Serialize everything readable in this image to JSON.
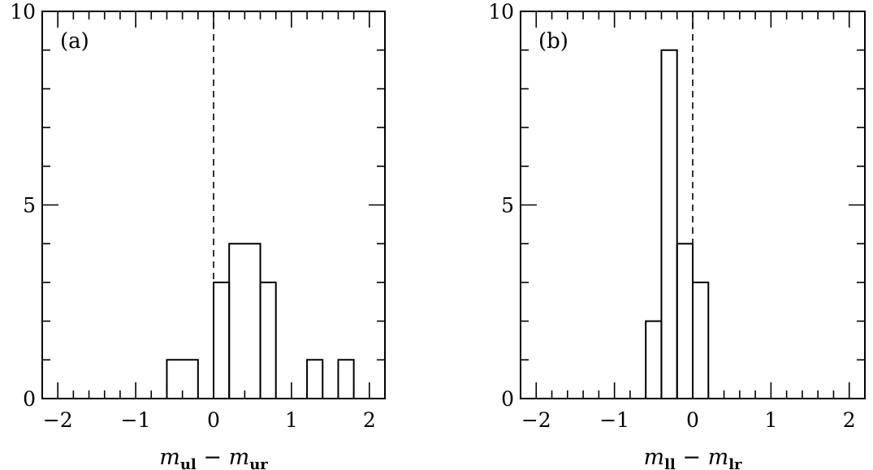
{
  "chart_data": [
    {
      "type": "bar",
      "panel_label": "(a)",
      "xlabel": {
        "left_var": "m",
        "left_sub": "ul",
        "operator": "−",
        "right_var": "m",
        "right_sub": "ur"
      },
      "xlim": [
        -2.2,
        2.2
      ],
      "ylim": [
        0,
        10
      ],
      "x_ticks": [
        -2,
        -1,
        0,
        1,
        2
      ],
      "x_tick_labels": [
        "−2",
        "−1",
        "0",
        "1",
        "2"
      ],
      "y_ticks": [
        0,
        5,
        10
      ],
      "y_tick_labels": [
        "0",
        "5",
        "10"
      ],
      "reference_line_x": 0,
      "bin_width": 0.2,
      "bins": [
        {
          "x0": -0.6,
          "x1": -0.2,
          "count": 1
        },
        {
          "x0": 0.0,
          "x1": 0.2,
          "count": 3
        },
        {
          "x0": 0.2,
          "x1": 0.6,
          "count": 4
        },
        {
          "x0": 0.6,
          "x1": 0.8,
          "count": 3
        },
        {
          "x0": 1.2,
          "x1": 1.4,
          "count": 1
        },
        {
          "x0": 1.6,
          "x1": 1.8,
          "count": 1
        }
      ]
    },
    {
      "type": "bar",
      "panel_label": "(b)",
      "xlabel": {
        "left_var": "m",
        "left_sub": "ll",
        "operator": "−",
        "right_var": "m",
        "right_sub": "lr"
      },
      "xlim": [
        -2.2,
        2.2
      ],
      "ylim": [
        0,
        10
      ],
      "x_ticks": [
        -2,
        -1,
        0,
        1,
        2
      ],
      "x_tick_labels": [
        "−2",
        "−1",
        "0",
        "1",
        "2"
      ],
      "y_ticks": [
        0,
        5,
        10
      ],
      "y_tick_labels": [
        "0",
        "5",
        "10"
      ],
      "reference_line_x": 0,
      "bin_width": 0.2,
      "bins": [
        {
          "x0": -0.6,
          "x1": -0.4,
          "count": 2
        },
        {
          "x0": -0.4,
          "x1": -0.2,
          "count": 9
        },
        {
          "x0": -0.2,
          "x1": 0.0,
          "count": 4
        },
        {
          "x0": 0.0,
          "x1": 0.2,
          "count": 3
        }
      ]
    }
  ]
}
